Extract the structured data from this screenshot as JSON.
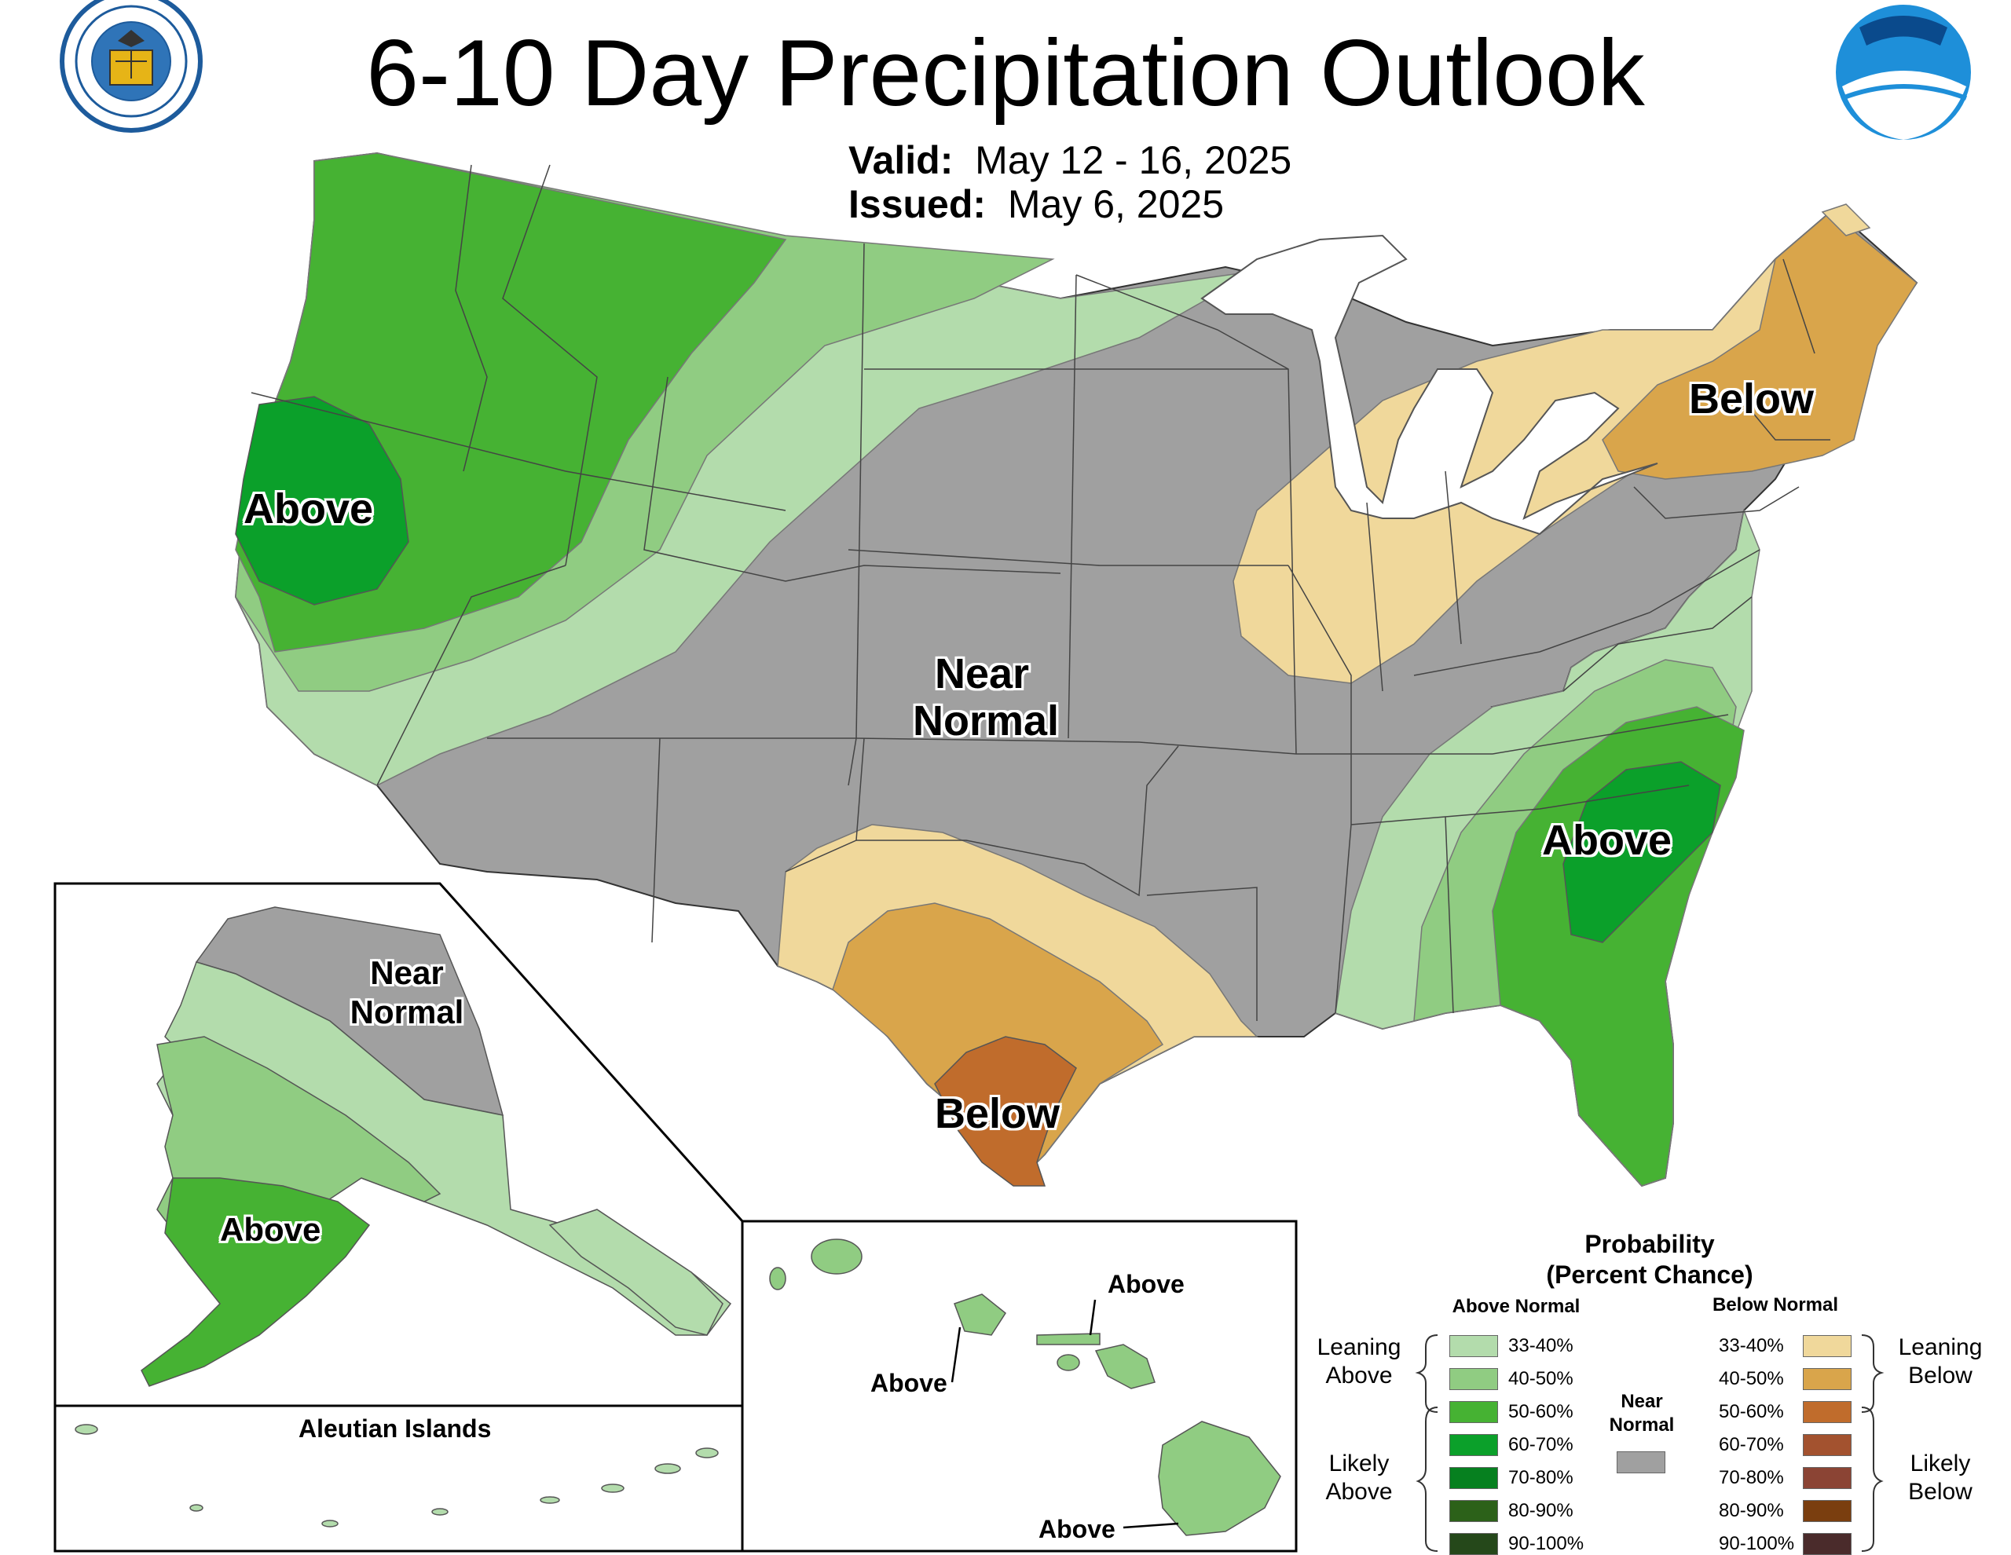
{
  "header": {
    "title": "6-10 Day Precipitation Outlook",
    "valid_label": "Valid:",
    "valid_dates": "May 12 - 16, 2025",
    "issued_label": "Issued:",
    "issued_date": "May 6, 2025"
  },
  "logos": {
    "commerce_seal_text": "DEPARTMENT OF COMMERCE · UNITED STATES OF AMERICA",
    "noaa_text": "NOAA"
  },
  "map_labels": {
    "west_above": "Above",
    "central_near": "Near",
    "central_normal": "Normal",
    "northeast_below": "Below",
    "texas_below": "Below",
    "southeast_above": "Above",
    "alaska_near": "Near",
    "alaska_normal": "Normal",
    "alaska_above": "Above",
    "aleutian_title": "Aleutian Islands",
    "hawaii_above_1": "Above",
    "hawaii_above_2": "Above",
    "hawaii_above_3": "Above"
  },
  "legend": {
    "title_line1": "Probability",
    "title_line2": "(Percent Chance)",
    "above_header": "Above Normal",
    "below_header": "Below Normal",
    "near_line1": "Near",
    "near_line2": "Normal",
    "leaning_above_1": "Leaning",
    "leaning_above_2": "Above",
    "likely_above_1": "Likely",
    "likely_above_2": "Above",
    "leaning_below_1": "Leaning",
    "leaning_below_2": "Below",
    "likely_below_1": "Likely",
    "likely_below_2": "Below",
    "above_items": [
      {
        "label": "33-40%",
        "color": "#b3dcac"
      },
      {
        "label": "40-50%",
        "color": "#90cc82"
      },
      {
        "label": "50-60%",
        "color": "#46b233"
      },
      {
        "label": "60-70%",
        "color": "#0ba02a"
      },
      {
        "label": "70-80%",
        "color": "#06801f"
      },
      {
        "label": "80-90%",
        "color": "#2c6119"
      },
      {
        "label": "90-100%",
        "color": "#25481a"
      }
    ],
    "below_items": [
      {
        "label": "33-40%",
        "color": "#f0d89b"
      },
      {
        "label": "40-50%",
        "color": "#d9a54b"
      },
      {
        "label": "50-60%",
        "color": "#c06c2c"
      },
      {
        "label": "60-70%",
        "color": "#a3522f"
      },
      {
        "label": "70-80%",
        "color": "#8b4434"
      },
      {
        "label": "80-90%",
        "color": "#7a3e0f"
      },
      {
        "label": "90-100%",
        "color": "#4a2b2b"
      }
    ],
    "near_color": "#a0a0a0"
  }
}
